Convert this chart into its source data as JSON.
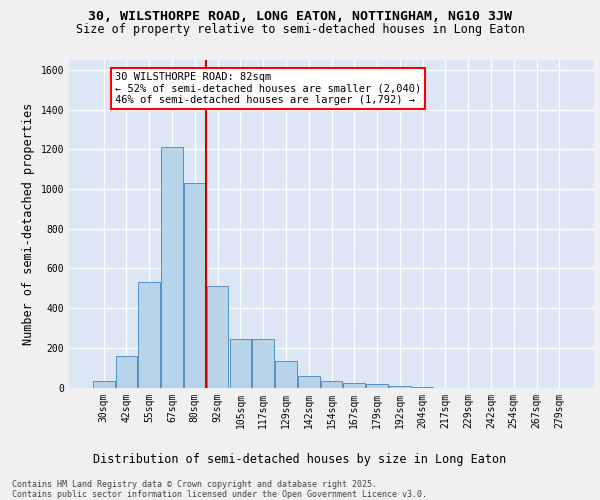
{
  "title1": "30, WILSTHORPE ROAD, LONG EATON, NOTTINGHAM, NG10 3JW",
  "title2": "Size of property relative to semi-detached houses in Long Eaton",
  "xlabel": "Distribution of semi-detached houses by size in Long Eaton",
  "ylabel": "Number of semi-detached properties",
  "footer": "Contains HM Land Registry data © Crown copyright and database right 2025.\nContains public sector information licensed under the Open Government Licence v3.0.",
  "categories": [
    "30sqm",
    "42sqm",
    "55sqm",
    "67sqm",
    "80sqm",
    "92sqm",
    "105sqm",
    "117sqm",
    "129sqm",
    "142sqm",
    "154sqm",
    "167sqm",
    "179sqm",
    "192sqm",
    "204sqm",
    "217sqm",
    "229sqm",
    "242sqm",
    "254sqm",
    "267sqm",
    "279sqm"
  ],
  "values": [
    35,
    160,
    530,
    1210,
    1030,
    510,
    245,
    245,
    135,
    60,
    35,
    25,
    20,
    10,
    5,
    0,
    0,
    0,
    0,
    0,
    0
  ],
  "bar_color": "#b8d4ea",
  "bar_edge_color": "#5590c0",
  "annotation_text": "30 WILSTHORPE ROAD: 82sqm\n← 52% of semi-detached houses are smaller (2,040)\n46% of semi-detached houses are larger (1,792) →",
  "vline_color": "#cc0000",
  "ylim": [
    0,
    1650
  ],
  "yticks": [
    0,
    200,
    400,
    600,
    800,
    1000,
    1200,
    1400,
    1600
  ],
  "bg_color": "#dce6f5",
  "grid_color": "#ffffff",
  "title1_fontsize": 9.5,
  "title2_fontsize": 8.5,
  "axis_label_fontsize": 8.5,
  "tick_fontsize": 7,
  "footer_fontsize": 6,
  "ann_fontsize": 7.5
}
